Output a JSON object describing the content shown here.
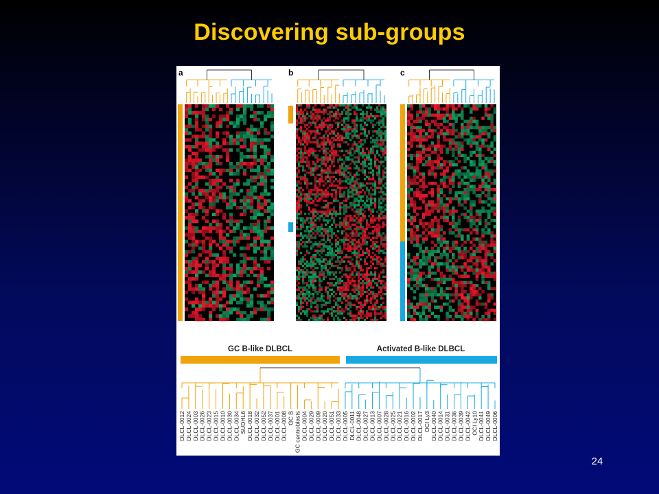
{
  "slide": {
    "title": "Discovering sub-groups",
    "page_number": "24"
  },
  "figure": {
    "panels": [
      {
        "label": "a"
      },
      {
        "label": "b"
      },
      {
        "label": "c"
      }
    ],
    "group_labels": {
      "gc": "GC B-like DLBCL",
      "activated": "Activated B-like DLBCL"
    },
    "colors": {
      "gc_group": "#f0a30a",
      "activated_group": "#1aa8e0",
      "heat_red": "#e8182a",
      "heat_green": "#10a060",
      "heat_black": "#000000"
    },
    "samples": [
      "DLCL-0012",
      "DLCL-0024",
      "DLCL-0003",
      "DLCL-0026",
      "DLCL-0023",
      "DLCL-0015",
      "DLCL-0010",
      "DLCL-0030",
      "DLCL-0034",
      "SUDHL6",
      "DLCL-0018",
      "DLCL-0032",
      "DLCL-0052",
      "DLCL-0037",
      "DLCL-0001",
      "DLCL-0008",
      "GC B",
      "GC centroblasts",
      "DLCL-0004",
      "DLCL-0029",
      "DLCL-0009",
      "DLCL-0020",
      "DLCL-0051",
      "DLCL-0033",
      "DLCL-0005",
      "DLCL-0011",
      "DLCL-0048",
      "DLCL-0027",
      "DLCL-0013",
      "DLCL-0007",
      "DLCL-0028",
      "DLCL-0025",
      "DLCL-0021",
      "DLCL-0016",
      "DLCL-0002",
      "DLCL-0017",
      "OCI Ly3",
      "DLCL-0040",
      "DLCL-0014",
      "DLCL-0031",
      "DLCL-0036",
      "DLCL-0039",
      "DLCL-0042",
      "OCI Ly10",
      "DLCL-0041",
      "DLCL-0049",
      "DLCL-0006"
    ]
  }
}
